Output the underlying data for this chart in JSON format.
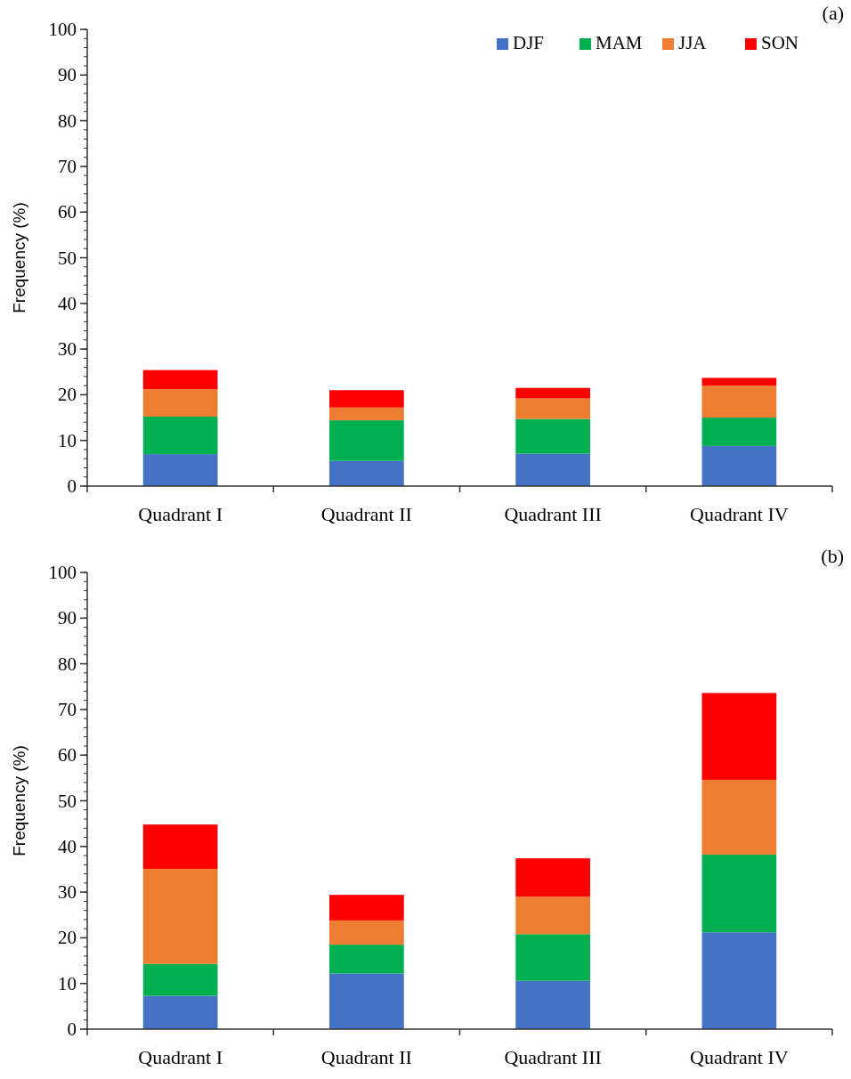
{
  "chart_data": [
    {
      "type": "bar",
      "title": "(a)",
      "ylabel": "Frequency (%)",
      "categories": [
        "Quadrant I",
        "Quadrant II",
        "Quadrant III",
        "Quadrant IV"
      ],
      "stacked": true,
      "ylim": [
        0,
        100
      ],
      "yticks": [
        0,
        10,
        20,
        30,
        40,
        50,
        60,
        70,
        80,
        90,
        100
      ],
      "legend": "top right",
      "series": [
        {
          "name": "DJF",
          "color": "#4472c4",
          "values": [
            7,
            5.5,
            7.1,
            8.8
          ]
        },
        {
          "name": "MAM",
          "color": "#00b050",
          "values": [
            8.2,
            8.9,
            7.6,
            6.2
          ]
        },
        {
          "name": "JJA",
          "color": "#ed7d31",
          "values": [
            6,
            2.8,
            4.5,
            7
          ]
        },
        {
          "name": "SON",
          "color": "#ff0000",
          "values": [
            4.2,
            3.8,
            2.3,
            1.7
          ]
        }
      ]
    },
    {
      "type": "bar",
      "title": "(b)",
      "ylabel": "Frequency (%)",
      "categories": [
        "Quadrant I",
        "Quadrant II",
        "Quadrant III",
        "Quadrant IV"
      ],
      "stacked": true,
      "ylim": [
        0,
        100
      ],
      "yticks": [
        0,
        10,
        20,
        30,
        40,
        50,
        60,
        70,
        80,
        90,
        100
      ],
      "series": [
        {
          "color": "#4472c4",
          "values": [
            7.3,
            12.2,
            10.6,
            21.2
          ]
        },
        {
          "color": "#00b050",
          "values": [
            7,
            6.3,
            10.2,
            17
          ]
        },
        {
          "color": "#ed7d31",
          "values": [
            20.8,
            5.3,
            8.2,
            16.4
          ]
        },
        {
          "color": "#ff0000",
          "values": [
            9.7,
            5.6,
            8.4,
            19
          ]
        }
      ]
    }
  ]
}
